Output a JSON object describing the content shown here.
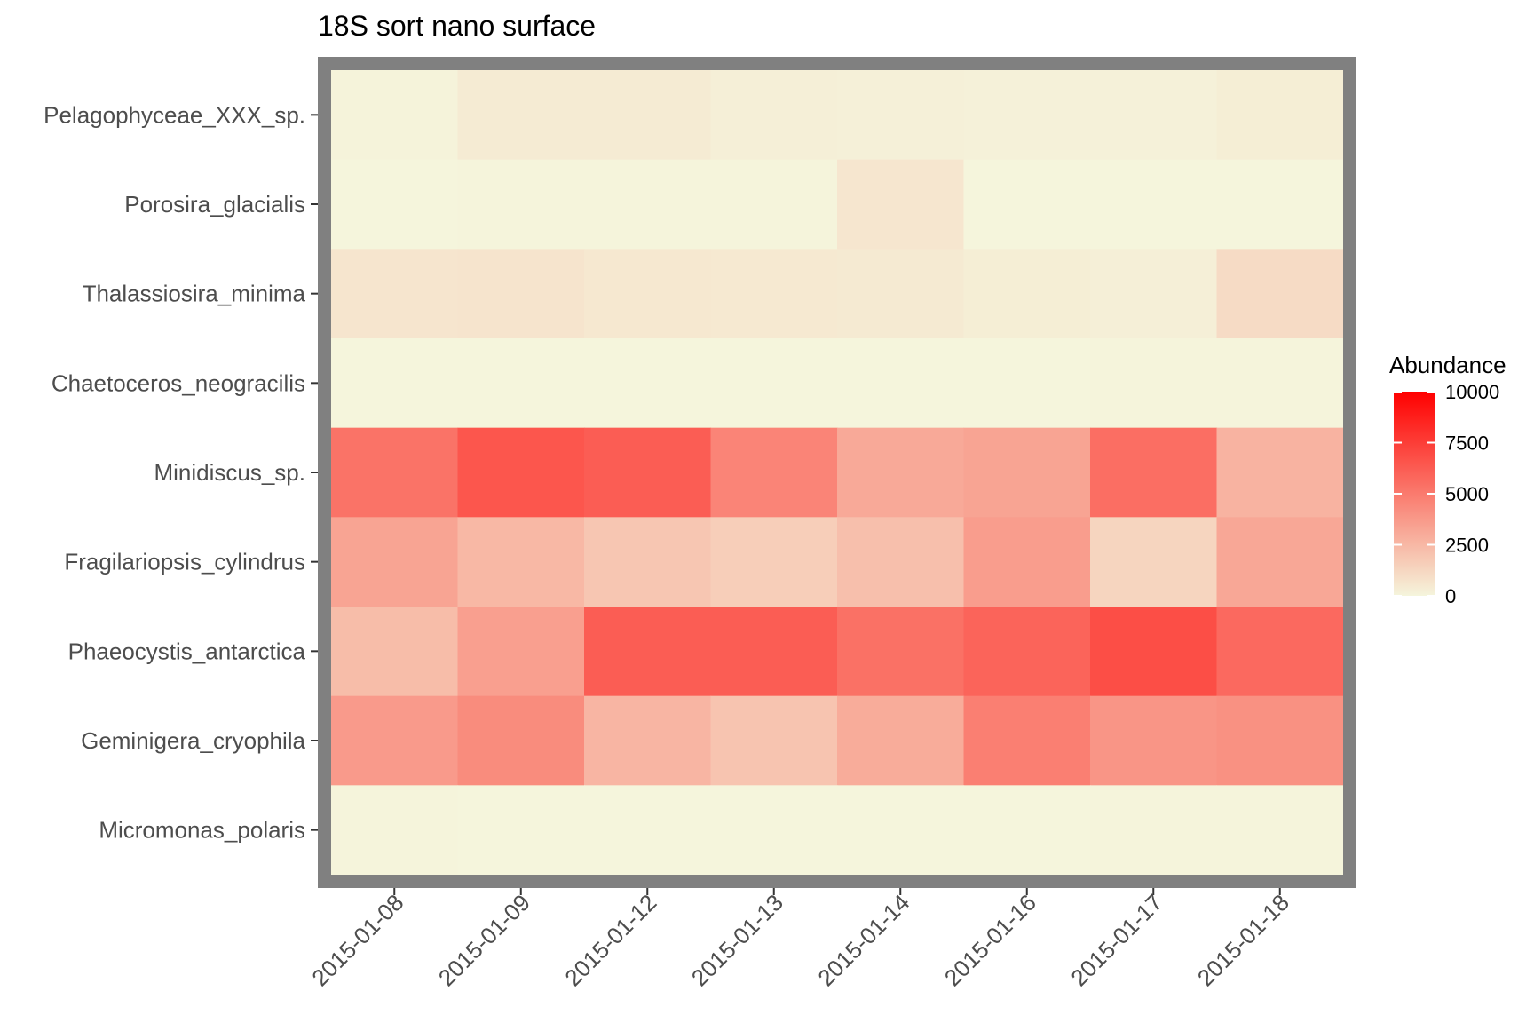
{
  "chart_data": {
    "type": "heatmap",
    "title": "18S sort nano surface",
    "xlabel": "",
    "ylabel": "",
    "x_categories": [
      "2015-01-08",
      "2015-01-09",
      "2015-01-12",
      "2015-01-13",
      "2015-01-14",
      "2015-01-16",
      "2015-01-17",
      "2015-01-18"
    ],
    "y_categories": [
      "Pelagophyceae_XXX_sp.",
      "Porosira_glacialis",
      "Thalassiosira_minima",
      "Chaetoceros_neogracilis",
      "Minidiscus_sp.",
      "Fragilariopsis_cylindrus",
      "Phaeocystis_antarctica",
      "Geminigera_cryophila",
      "Micromonas_polaris"
    ],
    "values": [
      [
        100,
        400,
        400,
        250,
        200,
        150,
        150,
        300
      ],
      [
        20,
        30,
        30,
        30,
        600,
        20,
        20,
        20
      ],
      [
        650,
        700,
        550,
        500,
        450,
        300,
        250,
        1050
      ],
      [
        10,
        15,
        15,
        15,
        15,
        20,
        40,
        60
      ],
      [
        5300,
        6500,
        6200,
        4600,
        3100,
        3300,
        5500,
        2700
      ],
      [
        3300,
        2500,
        1900,
        1600,
        2200,
        3600,
        1300,
        3200
      ],
      [
        2300,
        3500,
        6200,
        6200,
        5400,
        5900,
        6800,
        5700
      ],
      [
        3700,
        4300,
        2600,
        2000,
        3000,
        4800,
        3900,
        4100
      ],
      [
        30,
        20,
        20,
        20,
        20,
        20,
        50,
        30
      ]
    ],
    "legend": {
      "title": "Abundance",
      "min": 0,
      "max": 10000,
      "ticks": [
        10000,
        7500,
        5000,
        2500,
        0
      ],
      "tick_labels": [
        "10000",
        "7500",
        "5000",
        "2500",
        "0"
      ],
      "low_color": "#f5f5dc",
      "high_color": "#ff0000",
      "placement": "right"
    },
    "panel_border_color": "#808080",
    "grid": false
  }
}
